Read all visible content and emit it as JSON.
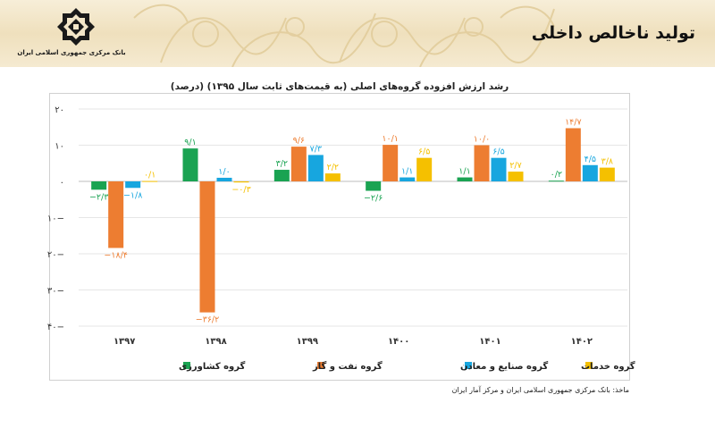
{
  "header": {
    "title": "تولید ناخالص داخلی",
    "bank_name": "بانک مرکزی جمهوری اسلامی ایران"
  },
  "chart_title": "رشد ارزش افزوده گروه‌های اصلی (به قیمت‌های ثابت سال ۱۳۹۵) (درصد)",
  "source": "ماخذ: بانک مرکزی جمهوری اسلامی ایران و مرکز آمار ایران",
  "colors": {
    "agriculture": "#1aa352",
    "oil_gas": "#ed7d31",
    "industry": "#17a6df",
    "services": "#f5c000"
  },
  "chart_data": {
    "type": "bar",
    "title": "رشد ارزش افزوده گروه‌های اصلی (به قیمت‌های ثابت سال ۱۳۹۵) (درصد)",
    "ylim": [
      -40,
      20
    ],
    "yticks": [
      20,
      10,
      0,
      -10,
      -20,
      -30,
      -40
    ],
    "ytick_labels": [
      "۲۰",
      "۱۰",
      "۰",
      "۱۰−",
      "۲۰−",
      "۳۰−",
      "۴۰−"
    ],
    "categories": [
      "۱۳۹۷",
      "۱۳۹۸",
      "۱۳۹۹",
      "۱۴۰۰",
      "۱۴۰۱",
      "۱۴۰۲"
    ],
    "legend_position": "bottom",
    "series": [
      {
        "name": "گروه کشاورزی",
        "key": "agriculture",
        "values": [
          -2.3,
          9.1,
          3.2,
          -2.6,
          1.1,
          0.2
        ],
        "labels": [
          "−۲/۳",
          "۹/۱",
          "۳/۲",
          "−۲/۶",
          "۱/۱",
          "۰/۲"
        ]
      },
      {
        "name": "گروه نفت و گاز",
        "key": "oil_gas",
        "values": [
          -18.4,
          -36.2,
          9.6,
          10.1,
          10.0,
          14.7
        ],
        "labels": [
          "−۱۸/۴",
          "−۳۶/۲",
          "۹/۶",
          "۱۰/۱",
          "۱۰/۰",
          "۱۴/۷"
        ]
      },
      {
        "name": "گروه صنایع و معادن",
        "key": "industry",
        "values": [
          -1.8,
          1.0,
          7.3,
          1.1,
          6.5,
          4.5
        ],
        "labels": [
          "−۱/۸",
          "۱/۰",
          "۷/۳",
          "۱/۱",
          "۶/۵",
          "۴/۵"
        ]
      },
      {
        "name": "گروه خدمات",
        "key": "services",
        "values": [
          0.1,
          -0.3,
          2.2,
          6.5,
          2.7,
          3.8
        ],
        "labels": [
          "۰/۱",
          "−۰/۳",
          "۲/۲",
          "۶/۵",
          "۲/۷",
          "۳/۸"
        ]
      }
    ]
  }
}
